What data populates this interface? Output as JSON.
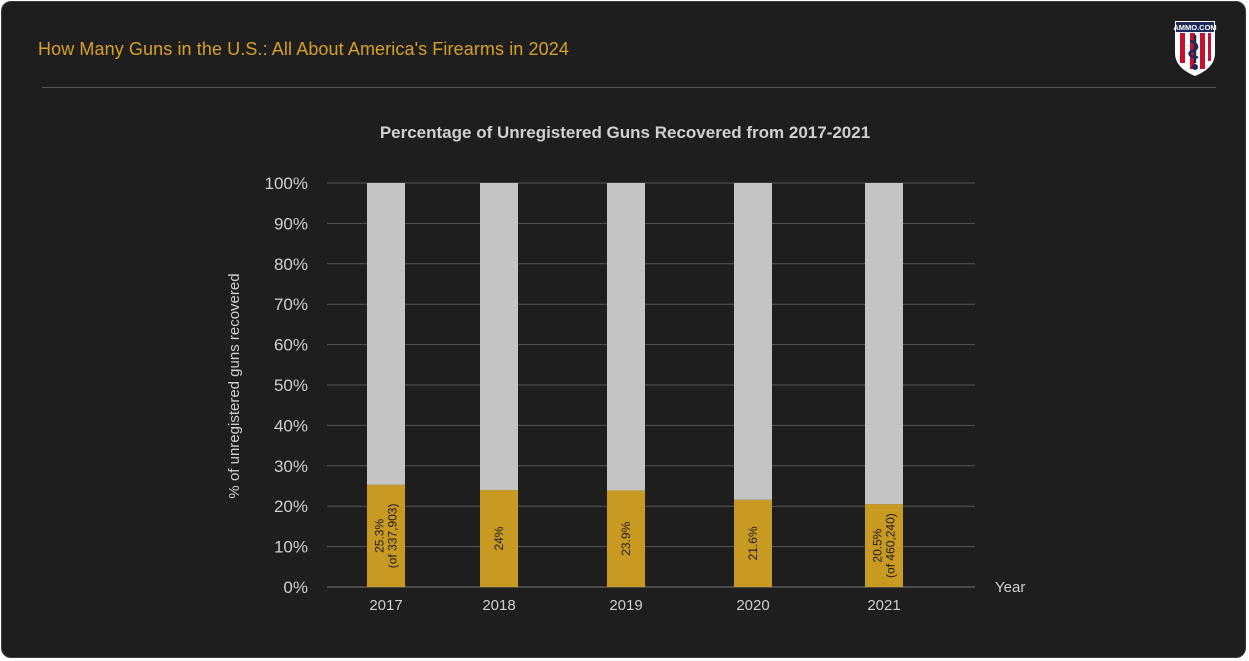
{
  "header": {
    "title": "How Many Guns in the U.S.: All About America's Firearms in 2024",
    "logo_text": "AMMO.COM"
  },
  "colors": {
    "background": "#1e1e1e",
    "accent": "#d6a023",
    "bar_unregistered": "#c99a22",
    "bar_remainder": "#c4c4c4",
    "grid": "#555555"
  },
  "chart_data": {
    "type": "bar",
    "stacked": true,
    "title": "Percentage of Unregistered Guns Recovered from 2017-2021",
    "xlabel": "Year",
    "ylabel": "% of unregistered guns recovered",
    "ylim": [
      0,
      100
    ],
    "yticks": [
      "0%",
      "10%",
      "20%",
      "30%",
      "40%",
      "50%",
      "60%",
      "70%",
      "80%",
      "90%",
      "100%"
    ],
    "categories": [
      "2017",
      "2018",
      "2019",
      "2020",
      "2021"
    ],
    "series": [
      {
        "values": [
          25.3,
          24,
          23.9,
          21.6,
          20.5
        ],
        "color": "#c99a22"
      },
      {
        "values": [
          74.7,
          76,
          76.1,
          78.4,
          79.5
        ],
        "color": "#c4c4c4"
      }
    ],
    "data_labels": [
      [
        "25.3%",
        "(of 337,903)"
      ],
      [
        "24%"
      ],
      [
        "23.9%"
      ],
      [
        "21.6%"
      ],
      [
        "20.5%",
        "(of 460,240)"
      ]
    ],
    "grid": true,
    "legend": "none"
  }
}
